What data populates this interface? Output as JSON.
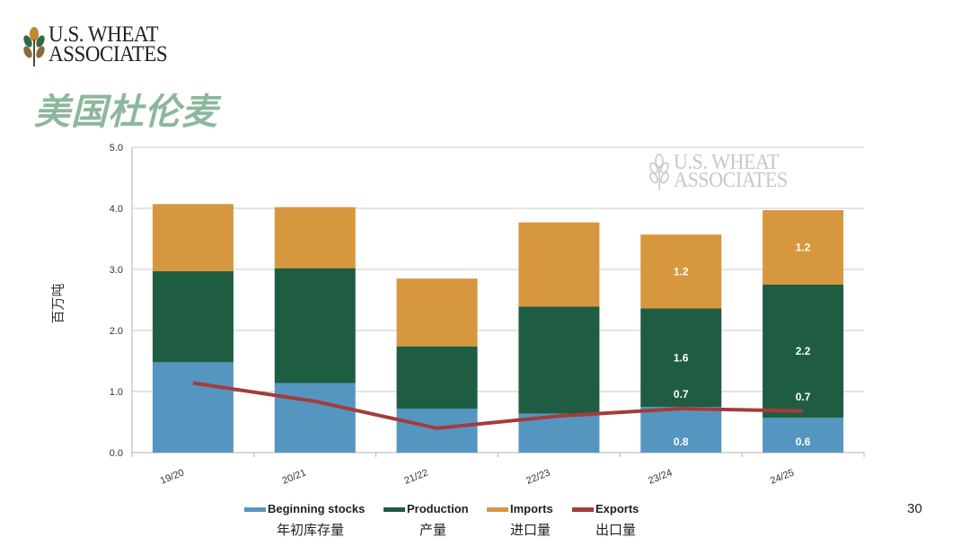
{
  "header": {
    "logo_line1": "U.S. WHEAT",
    "logo_line2": "ASSOCIATES",
    "title": "美国杜伦麦"
  },
  "watermark": {
    "line1": "U.S. WHEAT",
    "line2": "ASSOCIATES"
  },
  "chart_data": {
    "type": "bar",
    "stacked": true,
    "categories": [
      "19/20",
      "20/21",
      "21/22",
      "22/23",
      "23/24",
      "24/25"
    ],
    "ylabel": "百万吨",
    "ylim": [
      0,
      5
    ],
    "yticks": [
      "0.0",
      "1.0",
      "2.0",
      "3.0",
      "4.0",
      "5.0"
    ],
    "grid": true,
    "legend_position": "bottom",
    "series": [
      {
        "name": "Beginning stocks",
        "name_cn": "年初库存量",
        "color": "#5596c1",
        "values": [
          1.48,
          1.14,
          0.72,
          0.64,
          0.75,
          0.57
        ]
      },
      {
        "name": "Production",
        "name_cn": "产量",
        "color": "#1f5d42",
        "values": [
          1.49,
          1.88,
          1.02,
          1.75,
          1.61,
          2.18
        ]
      },
      {
        "name": "Imports",
        "name_cn": "进口量",
        "color": "#d6973e",
        "values": [
          1.1,
          1.0,
          1.11,
          1.38,
          1.21,
          1.22
        ]
      }
    ],
    "line_series": {
      "name": "Exports",
      "name_cn": "出口量",
      "color": "#a43c3c",
      "values": [
        1.14,
        0.84,
        0.4,
        0.6,
        0.72,
        0.68
      ]
    },
    "data_labels": [
      {
        "category": "23/24",
        "series": "Beginning stocks",
        "text": "0.8"
      },
      {
        "category": "23/24",
        "series": "Production",
        "text": "1.6"
      },
      {
        "category": "23/24",
        "series": "Imports",
        "text": "1.2"
      },
      {
        "category": "24/25",
        "series": "Beginning stocks",
        "text": "0.6"
      },
      {
        "category": "24/25",
        "series": "Production",
        "text": "2.2"
      },
      {
        "category": "24/25",
        "series": "Imports",
        "text": "1.2"
      }
    ],
    "export_labels": [
      {
        "category": "23/24",
        "text": "0.7"
      },
      {
        "category": "24/25",
        "text": "0.7"
      }
    ]
  },
  "footer": {
    "page_number": "30"
  }
}
